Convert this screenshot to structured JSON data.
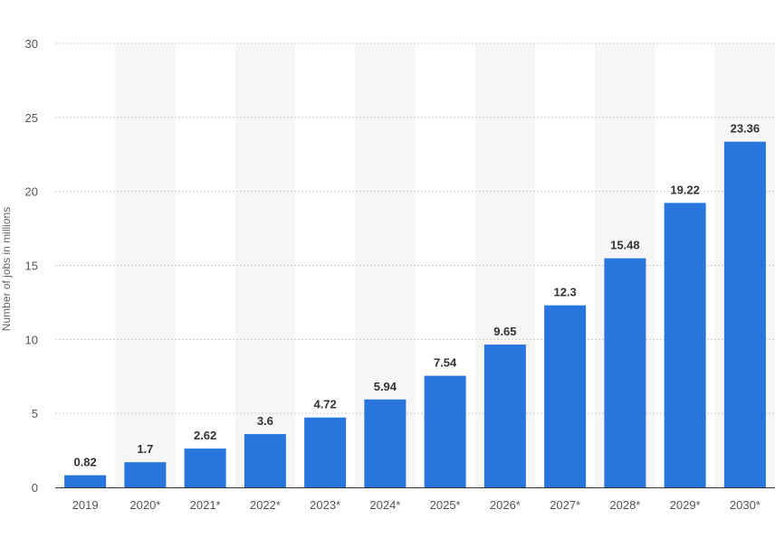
{
  "chart_data": {
    "type": "bar",
    "categories": [
      "2019",
      "2020*",
      "2021*",
      "2022*",
      "2023*",
      "2024*",
      "2025*",
      "2026*",
      "2027*",
      "2028*",
      "2029*",
      "2030*"
    ],
    "values": [
      0.82,
      1.7,
      2.62,
      3.6,
      4.72,
      5.94,
      7.54,
      9.65,
      12.3,
      15.48,
      19.22,
      23.36
    ],
    "value_labels": [
      "0.82",
      "1.7",
      "2.62",
      "3.6",
      "4.72",
      "5.94",
      "7.54",
      "9.65",
      "12.3",
      "15.48",
      "19.22",
      "23.36"
    ],
    "title": "",
    "xlabel": "",
    "ylabel": "Number of jobs in millions",
    "ylim": [
      0,
      30
    ],
    "yticks": [
      "0",
      "5",
      "10",
      "15",
      "20",
      "25",
      "30"
    ],
    "grid": true,
    "grid_style": "dotted",
    "alternating_column_bands": true,
    "legend": "none",
    "colors": {
      "bar": "#2876dd",
      "band": "#f6f6f6",
      "grid": "#cccccc",
      "axis": "#333333"
    }
  }
}
